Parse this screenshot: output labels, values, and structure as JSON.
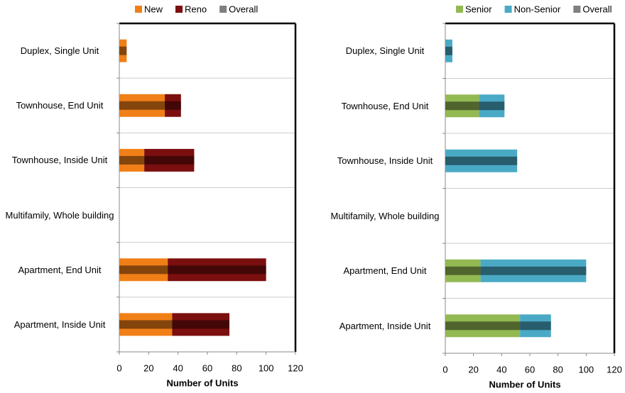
{
  "chart_data": [
    {
      "type": "bar",
      "orientation": "horizontal",
      "stacked": true,
      "x_label": "Number of Units",
      "categories": [
        "Duplex, Single Unit",
        "Townhouse, End Unit",
        "Townhouse, Inside Unit",
        "Multifamily, Whole building",
        "Apartment, End Unit",
        "Apartment, Inside Unit"
      ],
      "series": [
        {
          "name": "New",
          "color": "#f07f17",
          "values": [
            5,
            31,
            17,
            0,
            33,
            36
          ]
        },
        {
          "name": "Reno",
          "color": "#7b0e0e",
          "values": [
            0,
            11,
            34,
            0,
            67,
            39
          ]
        }
      ],
      "overall": {
        "name": "Overall",
        "color": "#808080",
        "values": [
          5,
          42,
          51,
          0,
          100,
          75
        ]
      },
      "xlim": [
        0,
        120
      ],
      "xticks": [
        0,
        20,
        40,
        60,
        80,
        100,
        120
      ],
      "grid": true
    },
    {
      "type": "bar",
      "orientation": "horizontal",
      "stacked": true,
      "x_label": "Number of Units",
      "categories": [
        "Duplex, Single Unit",
        "Townhouse, End Unit",
        "Townhouse, Inside Unit",
        "Multifamily, Whole building",
        "Apartment, End Unit",
        "Apartment, Inside Unit"
      ],
      "series": [
        {
          "name": "Senior",
          "color": "#93b953",
          "values": [
            0,
            24,
            0,
            0,
            25,
            53
          ]
        },
        {
          "name": "Non-Senior",
          "color": "#4aaac6",
          "values": [
            5,
            18,
            51,
            0,
            75,
            22
          ]
        }
      ],
      "overall": {
        "name": "Overall",
        "color": "#808080",
        "values": [
          5,
          42,
          51,
          0,
          100,
          75
        ]
      },
      "xlim": [
        0,
        120
      ],
      "xticks": [
        0,
        20,
        40,
        60,
        80,
        100,
        120
      ],
      "grid": true
    }
  ]
}
